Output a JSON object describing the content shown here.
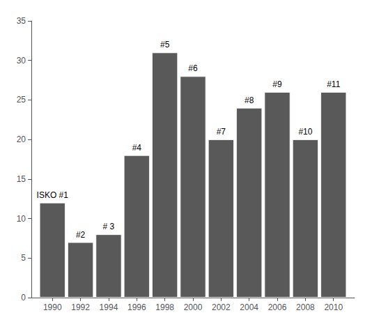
{
  "chart_data": {
    "type": "bar",
    "x": [
      1990,
      1992,
      1994,
      1996,
      1998,
      2000,
      2002,
      2004,
      2006,
      2008,
      2010
    ],
    "values": [
      12,
      7,
      8,
      18,
      31,
      28,
      20,
      24,
      26,
      20,
      26
    ],
    "annotations": [
      "ISKO #1",
      "#2",
      "# 3",
      "#4",
      "#5",
      "#6",
      "#7",
      "#8",
      "#9",
      "#10",
      "#11"
    ],
    "color": "#595959",
    "xlim": [
      1988.5,
      2011.5
    ],
    "xticks": [
      1990,
      1992,
      1994,
      1996,
      1998,
      2000,
      2002,
      2004,
      2006,
      2008,
      2010
    ],
    "ylim": [
      0,
      35
    ],
    "yticks": [
      0,
      5,
      10,
      15,
      20,
      25,
      30,
      35
    ],
    "grid": false
  }
}
